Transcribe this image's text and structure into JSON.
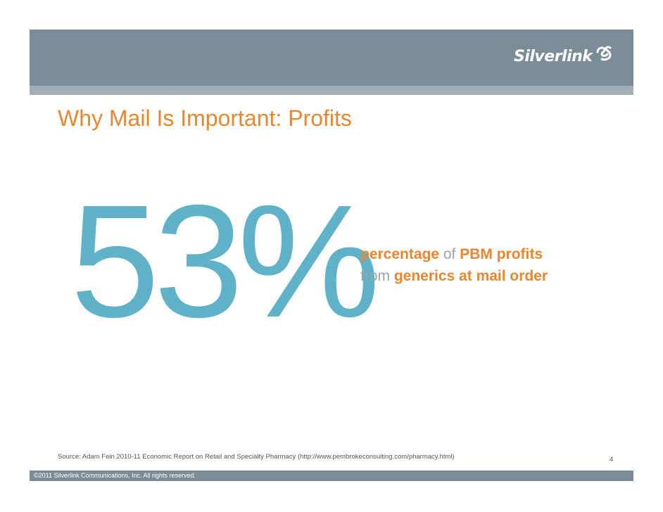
{
  "header": {
    "logo_text": "Silverlink",
    "brand_color": "#7b8c97"
  },
  "slide": {
    "title": "Why Mail Is Important: Profits",
    "stat_value": "53%",
    "stat_desc": {
      "line1_hl1": "percentage",
      "line1_plain": " of ",
      "line1_hl2": "PBM profits",
      "line2_plain": "from ",
      "line2_hl": "generics at mail order"
    },
    "source": "Source: Adam Fein 2010-11 Economic Report on Retail and Specialty Pharmacy (http://www.pembrokeconsulting.com/pharmacy.html)",
    "page_number": "4"
  },
  "footer": {
    "copyright": "©2011 Silverlink Communications, Inc. All rights reserved."
  },
  "colors": {
    "accent_orange": "#e8872f",
    "stat_teal": "#5fb2c7",
    "muted_gray": "#9aa5ab"
  }
}
